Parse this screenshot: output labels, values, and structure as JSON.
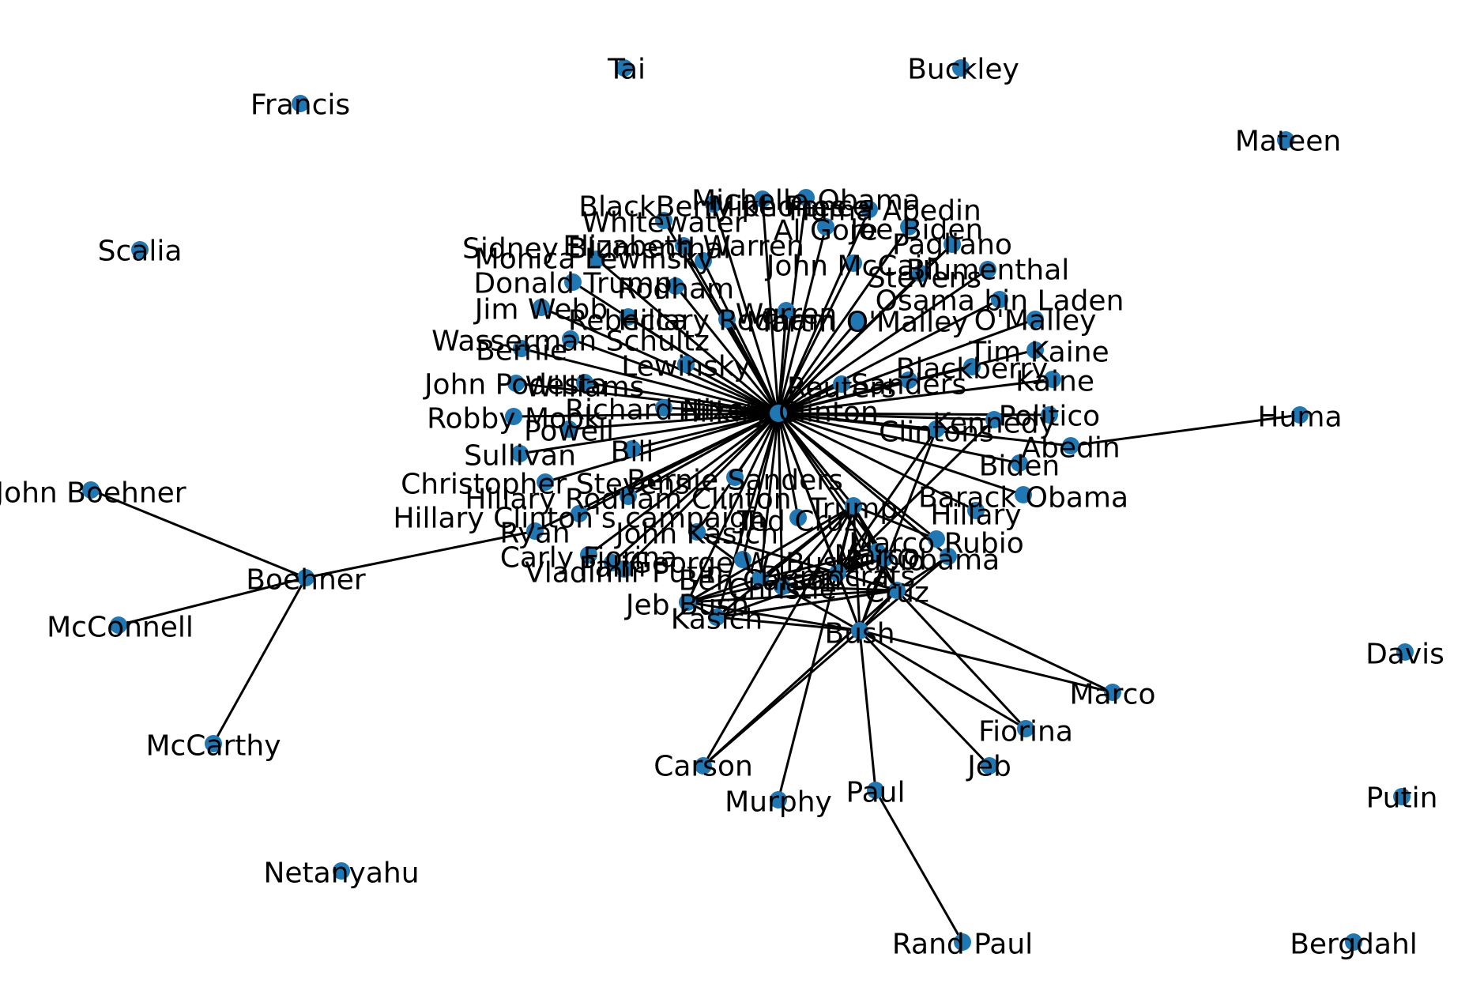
{
  "graph": {
    "node_color": "#1f77b4",
    "edge_color": "#000000",
    "label_color": "#000000",
    "nodes": [
      {
        "id": "hillary",
        "label": "Hillary Clinton"
      },
      {
        "id": "tai",
        "label": "Tai"
      },
      {
        "id": "buckley",
        "label": "Buckley"
      },
      {
        "id": "francis",
        "label": "Francis"
      },
      {
        "id": "mateen",
        "label": "Mateen"
      },
      {
        "id": "scalia",
        "label": "Scalia"
      },
      {
        "id": "michelle_obama",
        "label": "Michelle Obama"
      },
      {
        "id": "blackberry_phones",
        "label": "BlackBerry phones"
      },
      {
        "id": "mike_pence",
        "label": "Mike Pence"
      },
      {
        "id": "abedin_huma",
        "label": "Huma Abedin"
      },
      {
        "id": "whitewater",
        "label": "Whitewater"
      },
      {
        "id": "al_gore",
        "label": "Al Gore"
      },
      {
        "id": "joe_biden",
        "label": "Joe Biden"
      },
      {
        "id": "sidney",
        "label": "Sidney Blumenthal"
      },
      {
        "id": "elizabeth_warren",
        "label": "Elizabeth Warren"
      },
      {
        "id": "pagliano",
        "label": "Pagliano"
      },
      {
        "id": "monica_lewinsky",
        "label": "Monica Lewinsky"
      },
      {
        "id": "john_mccain",
        "label": "John McCain"
      },
      {
        "id": "blumenthal",
        "label": "Blumenthal"
      },
      {
        "id": "stevens",
        "label": "Stevens"
      },
      {
        "id": "donald_trump",
        "label": "Donald Trump"
      },
      {
        "id": "rodham",
        "label": "Rodham"
      },
      {
        "id": "osama",
        "label": "Osama bin Laden"
      },
      {
        "id": "jim_webb",
        "label": "Jim Webb"
      },
      {
        "id": "rebecca",
        "label": "Rebecca"
      },
      {
        "id": "hillary_rodham",
        "label": "Hillary Rodham"
      },
      {
        "id": "warren",
        "label": "Warren"
      },
      {
        "id": "martin_omalley",
        "label": "Martin O'Malley"
      },
      {
        "id": "omalley",
        "label": "O'Malley"
      },
      {
        "id": "wasserman",
        "label": "Wasserman Schultz"
      },
      {
        "id": "tim_kaine",
        "label": "Tim Kaine"
      },
      {
        "id": "bernie",
        "label": "Bernie"
      },
      {
        "id": "lewinsky",
        "label": "Lewinsky"
      },
      {
        "id": "blackberry",
        "label": "Blackberry"
      },
      {
        "id": "kaine",
        "label": "Kaine"
      },
      {
        "id": "john_podesta",
        "label": "John Podesta"
      },
      {
        "id": "williams",
        "label": "Williams"
      },
      {
        "id": "sanders",
        "label": "Sanders"
      },
      {
        "id": "reuters",
        "label": "Reuters"
      },
      {
        "id": "richard_nixon",
        "label": "Richard Nixon"
      },
      {
        "id": "politico",
        "label": "Politico"
      },
      {
        "id": "robby_mook",
        "label": "Robby Mook"
      },
      {
        "id": "kennedy",
        "label": "Kennedy"
      },
      {
        "id": "huma",
        "label": "Huma"
      },
      {
        "id": "powell",
        "label": "Powell"
      },
      {
        "id": "clintons",
        "label": "Clintons"
      },
      {
        "id": "abedin",
        "label": "Abedin"
      },
      {
        "id": "bill",
        "label": "Bill"
      },
      {
        "id": "sullivan",
        "label": "Sullivan"
      },
      {
        "id": "biden",
        "label": "Biden"
      },
      {
        "id": "john_boehner",
        "label": "John Boehner"
      },
      {
        "id": "christopher_stevens",
        "label": "Christopher Stevens"
      },
      {
        "id": "bernie_sanders",
        "label": "Bernie Sanders"
      },
      {
        "id": "barack_obama",
        "label": "Barack Obama"
      },
      {
        "id": "hillary_rodham_clinton",
        "label": "Hillary Rodham Clinton"
      },
      {
        "id": "trump",
        "label": "Trump"
      },
      {
        "id": "hillary2",
        "label": "Hillary"
      },
      {
        "id": "ted_cruz",
        "label": "Ted Cruz"
      },
      {
        "id": "hrc_campaign",
        "label": "Hillary Clinton's campaign"
      },
      {
        "id": "john_kasich",
        "label": "John Kasich"
      },
      {
        "id": "rubio",
        "label": "Marco Rubio"
      },
      {
        "id": "ryan",
        "label": "Ryan"
      },
      {
        "id": "boehner",
        "label": "Boehner"
      },
      {
        "id": "carly_fiorina",
        "label": "Carly Fiorina"
      },
      {
        "id": "george_w_bush",
        "label": "George W. Bush"
      },
      {
        "id": "obama",
        "label": "Obama"
      },
      {
        "id": "palin",
        "label": "Palin"
      },
      {
        "id": "vladimir_putin",
        "label": "Vladimir Putin"
      },
      {
        "id": "marco",
        "label": "Marco"
      },
      {
        "id": "rubio2",
        "label": "Rubio"
      },
      {
        "id": "ben_carson",
        "label": "Ben Carson"
      },
      {
        "id": "democrats",
        "label": "Democrats"
      },
      {
        "id": "jeb_bush",
        "label": "Jeb Bush"
      },
      {
        "id": "cruz",
        "label": "Cruz"
      },
      {
        "id": "mcconnell",
        "label": "McConnell"
      },
      {
        "id": "kasich",
        "label": "Kasich"
      },
      {
        "id": "christie",
        "label": "Christie"
      },
      {
        "id": "bush",
        "label": "Bush"
      },
      {
        "id": "davis",
        "label": "Davis"
      },
      {
        "id": "marco2",
        "label": "Marco"
      },
      {
        "id": "fiorina",
        "label": "Fiorina"
      },
      {
        "id": "mccarthy",
        "label": "McCarthy"
      },
      {
        "id": "carson",
        "label": "Carson"
      },
      {
        "id": "jeb",
        "label": "Jeb"
      },
      {
        "id": "putin",
        "label": "Putin"
      },
      {
        "id": "paul",
        "label": "Paul"
      },
      {
        "id": "murphy",
        "label": "Murphy"
      },
      {
        "id": "netanyahu",
        "label": "Netanyahu"
      },
      {
        "id": "rand_paul",
        "label": "Rand Paul"
      },
      {
        "id": "bergdahl",
        "label": "Bergdahl"
      }
    ],
    "edges": [
      [
        "hillary",
        "michelle_obama"
      ],
      [
        "hillary",
        "blackberry_phones"
      ],
      [
        "hillary",
        "mike_pence"
      ],
      [
        "hillary",
        "abedin_huma"
      ],
      [
        "hillary",
        "whitewater"
      ],
      [
        "hillary",
        "al_gore"
      ],
      [
        "hillary",
        "joe_biden"
      ],
      [
        "hillary",
        "sidney"
      ],
      [
        "hillary",
        "elizabeth_warren"
      ],
      [
        "hillary",
        "pagliano"
      ],
      [
        "hillary",
        "monica_lewinsky"
      ],
      [
        "hillary",
        "john_mccain"
      ],
      [
        "hillary",
        "blumenthal"
      ],
      [
        "hillary",
        "stevens"
      ],
      [
        "hillary",
        "donald_trump"
      ],
      [
        "hillary",
        "rodham"
      ],
      [
        "hillary",
        "osama"
      ],
      [
        "hillary",
        "jim_webb"
      ],
      [
        "hillary",
        "rebecca"
      ],
      [
        "hillary",
        "hillary_rodham"
      ],
      [
        "hillary",
        "warren"
      ],
      [
        "hillary",
        "martin_omalley"
      ],
      [
        "hillary",
        "omalley"
      ],
      [
        "hillary",
        "wasserman"
      ],
      [
        "hillary",
        "tim_kaine"
      ],
      [
        "hillary",
        "bernie"
      ],
      [
        "hillary",
        "lewinsky"
      ],
      [
        "hillary",
        "blackberry"
      ],
      [
        "hillary",
        "kaine"
      ],
      [
        "hillary",
        "john_podesta"
      ],
      [
        "hillary",
        "williams"
      ],
      [
        "hillary",
        "sanders"
      ],
      [
        "hillary",
        "reuters"
      ],
      [
        "hillary",
        "richard_nixon"
      ],
      [
        "hillary",
        "politico"
      ],
      [
        "hillary",
        "robby_mook"
      ],
      [
        "hillary",
        "kennedy"
      ],
      [
        "hillary",
        "powell"
      ],
      [
        "hillary",
        "clintons"
      ],
      [
        "hillary",
        "abedin"
      ],
      [
        "hillary",
        "bill"
      ],
      [
        "hillary",
        "sullivan"
      ],
      [
        "hillary",
        "biden"
      ],
      [
        "hillary",
        "christopher_stevens"
      ],
      [
        "hillary",
        "bernie_sanders"
      ],
      [
        "hillary",
        "barack_obama"
      ],
      [
        "hillary",
        "hillary_rodham_clinton"
      ],
      [
        "hillary",
        "trump"
      ],
      [
        "hillary",
        "hillary2"
      ],
      [
        "hillary",
        "ted_cruz"
      ],
      [
        "hillary",
        "hrc_campaign"
      ],
      [
        "hillary",
        "john_kasich"
      ],
      [
        "hillary",
        "rubio"
      ],
      [
        "hillary",
        "ryan"
      ],
      [
        "hillary",
        "carly_fiorina"
      ],
      [
        "hillary",
        "george_w_bush"
      ],
      [
        "hillary",
        "obama"
      ],
      [
        "hillary",
        "palin"
      ],
      [
        "hillary",
        "vladimir_putin"
      ],
      [
        "hillary",
        "rubio2"
      ],
      [
        "hillary",
        "ben_carson"
      ],
      [
        "hillary",
        "democrats"
      ],
      [
        "hillary",
        "jeb_bush"
      ],
      [
        "hillary",
        "cruz"
      ],
      [
        "hillary",
        "kasich"
      ],
      [
        "hillary",
        "christie"
      ],
      [
        "hillary",
        "bush"
      ],
      [
        "abedin",
        "huma"
      ],
      [
        "ryan",
        "boehner"
      ],
      [
        "boehner",
        "john_boehner"
      ],
      [
        "boehner",
        "mcconnell"
      ],
      [
        "boehner",
        "mccarthy"
      ],
      [
        "trump",
        "jeb_bush"
      ],
      [
        "trump",
        "cruz"
      ],
      [
        "trump",
        "rubio"
      ],
      [
        "trump",
        "kasich"
      ],
      [
        "trump",
        "carson"
      ],
      [
        "trump",
        "bush"
      ],
      [
        "trump",
        "christie"
      ],
      [
        "trump",
        "rubio2"
      ],
      [
        "trump",
        "democrats"
      ],
      [
        "trump",
        "ben_carson"
      ],
      [
        "trump",
        "murphy"
      ],
      [
        "clintons",
        "democrats"
      ],
      [
        "kennedy",
        "democrats"
      ],
      [
        "clintons",
        "bush"
      ],
      [
        "cruz",
        "bush"
      ],
      [
        "cruz",
        "carson"
      ],
      [
        "cruz",
        "kasich"
      ],
      [
        "cruz",
        "marco2"
      ],
      [
        "cruz",
        "fiorina"
      ],
      [
        "cruz",
        "jeb_bush"
      ],
      [
        "bush",
        "carson"
      ],
      [
        "bush",
        "fiorina"
      ],
      [
        "bush",
        "marco2"
      ],
      [
        "bush",
        "jeb"
      ],
      [
        "bush",
        "paul"
      ],
      [
        "bush",
        "kasich"
      ],
      [
        "bush",
        "jeb_bush"
      ],
      [
        "bush",
        "christie"
      ],
      [
        "bush",
        "rubio2"
      ],
      [
        "paul",
        "rand_paul"
      ],
      [
        "jeb_bush",
        "kasich"
      ],
      [
        "jeb_bush",
        "rubio2"
      ],
      [
        "kasich",
        "cruz"
      ],
      [
        "ben_carson",
        "jeb_bush"
      ],
      [
        "ben_carson",
        "marco"
      ],
      [
        "democrats",
        "cruz"
      ],
      [
        "democrats",
        "bush"
      ],
      [
        "john_kasich",
        "ben_carson"
      ],
      [
        "john_kasich",
        "cruz"
      ],
      [
        "rubio2",
        "kasich"
      ],
      [
        "obama",
        "bush"
      ],
      [
        "obama",
        "cruz"
      ],
      [
        "christie",
        "cruz"
      ],
      [
        "christie",
        "rubio2"
      ]
    ]
  }
}
